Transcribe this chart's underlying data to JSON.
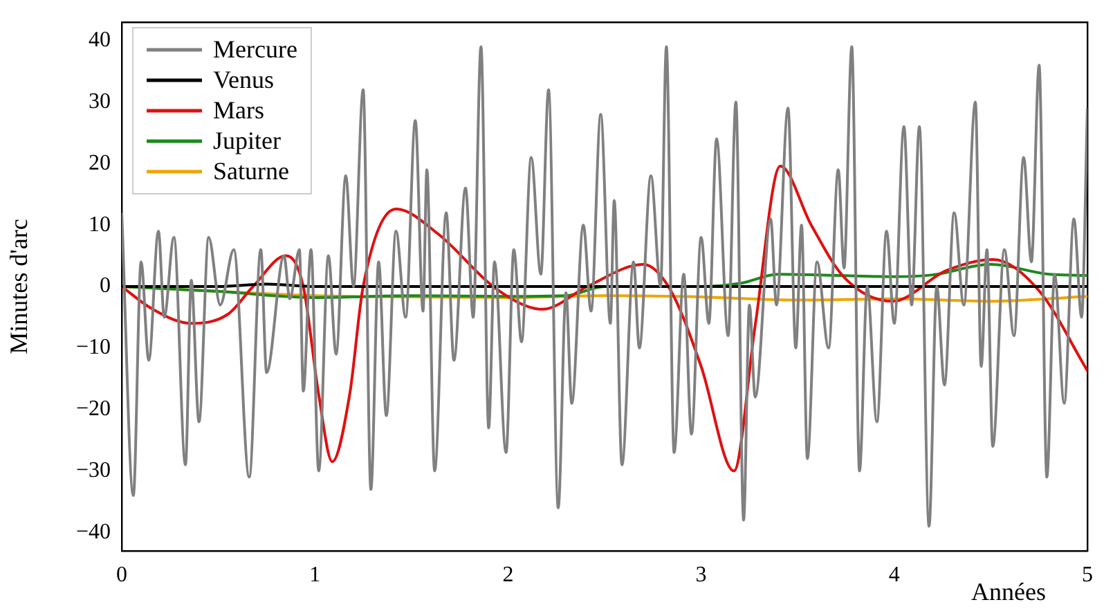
{
  "chart_data": {
    "type": "line",
    "xlabel": "Années",
    "ylabel": "Minutes d'arc",
    "xlim": [
      0,
      5
    ],
    "xticks": [
      0,
      1,
      2,
      3,
      4,
      5
    ],
    "ylim": [
      -43,
      43
    ],
    "yticks": [
      {
        "value": -40,
        "label": "−40"
      },
      {
        "value": -30,
        "label": "−30"
      },
      {
        "value": -20,
        "label": "−20"
      },
      {
        "value": -10,
        "label": "−10"
      },
      0,
      10,
      20,
      30,
      40
    ],
    "legend": "top left",
    "grid": false,
    "marker": "none",
    "line_style": "solid",
    "series": [
      {
        "name": "Mercure",
        "color": "#808080",
        "x": [
          0,
          0.06,
          0.1,
          0.14,
          0.19,
          0.22,
          0.27,
          0.33,
          0.36,
          0.4,
          0.45,
          0.51,
          0.58,
          0.66,
          0.72,
          0.75,
          0.84,
          0.87,
          0.92,
          0.94,
          0.98,
          1.02,
          1.07,
          1.11,
          1.16,
          1.2,
          1.25,
          1.29,
          1.33,
          1.37,
          1.42,
          1.47,
          1.52,
          1.56,
          1.58,
          1.62,
          1.68,
          1.72,
          1.78,
          1.82,
          1.86,
          1.9,
          1.93,
          1.99,
          2.03,
          2.07,
          2.12,
          2.17,
          2.21,
          2.26,
          2.3,
          2.33,
          2.39,
          2.43,
          2.48,
          2.53,
          2.55,
          2.59,
          2.65,
          2.68,
          2.74,
          2.79,
          2.82,
          2.86,
          2.91,
          2.95,
          3.0,
          3.04,
          3.08,
          3.14,
          3.18,
          3.22,
          3.25,
          3.28,
          3.36,
          3.39,
          3.45,
          3.49,
          3.52,
          3.55,
          3.6,
          3.66,
          3.71,
          3.74,
          3.78,
          3.82,
          3.86,
          3.91,
          3.96,
          4.0,
          4.05,
          4.09,
          4.13,
          4.18,
          4.22,
          4.26,
          4.31,
          4.36,
          4.42,
          4.45,
          4.48,
          4.51,
          4.57,
          4.62,
          4.67,
          4.71,
          4.75,
          4.79,
          4.83,
          4.88,
          4.93,
          4.97,
          5.0
        ],
        "values": [
          12,
          -34,
          4,
          -12,
          9,
          -5,
          8,
          -29,
          1,
          -22,
          8,
          -3,
          6,
          -31,
          6,
          -14,
          5,
          -2,
          6,
          -17,
          6,
          -30,
          5,
          -11,
          18,
          0,
          32,
          -33,
          4,
          -21,
          9,
          -5,
          27,
          -4,
          19,
          -30,
          12,
          -12,
          16,
          -5,
          39,
          -23,
          4,
          -27,
          6,
          -9,
          21,
          2,
          32,
          -36,
          -1,
          -19,
          10,
          -4,
          28,
          -6,
          14,
          -29,
          4,
          -10,
          18,
          0,
          39,
          -27,
          2,
          -24,
          8,
          -6,
          24,
          -8,
          30,
          -38,
          -3,
          -18,
          11,
          -3,
          29,
          -10,
          10,
          -28,
          4,
          -10,
          19,
          3,
          39,
          -30,
          0,
          -22,
          9,
          -6,
          26,
          -3,
          26,
          -39,
          0,
          -16,
          12,
          -3,
          30,
          -13,
          6,
          -26,
          6,
          -8,
          21,
          4,
          36,
          -31,
          2,
          -19,
          11,
          -5,
          29
        ]
      },
      {
        "name": "Venus",
        "color": "#000000",
        "x": [
          0,
          0.5,
          0.75,
          1,
          5
        ],
        "values": [
          0,
          0,
          0.4,
          0,
          0
        ]
      },
      {
        "name": "Mars",
        "color": "#e01010",
        "x": [
          0,
          0.15,
          0.36,
          0.55,
          0.68,
          0.85,
          0.94,
          1.02,
          1.09,
          1.18,
          1.25,
          1.42,
          1.64,
          1.94,
          2.18,
          2.41,
          2.7,
          2.84,
          3.0,
          3.17,
          3.28,
          3.41,
          3.57,
          3.74,
          3.99,
          4.27,
          4.51,
          4.75,
          5.0
        ],
        "values": [
          0,
          -3.5,
          -6,
          -4.5,
          0,
          5,
          0,
          -17.6,
          -28.5,
          -17.6,
          0,
          12.6,
          8.5,
          -0.4,
          -3.7,
          0,
          3.6,
          -0.5,
          -13,
          -30,
          -6.3,
          19.6,
          10,
          1.5,
          -2.4,
          2.6,
          4.4,
          -0.7,
          -13.7
        ]
      },
      {
        "name": "Jupiter",
        "color": "#1a8a1a",
        "x": [
          0,
          0.5,
          1.0,
          1.5,
          2.0,
          2.3,
          2.5,
          3.0,
          3.2,
          3.4,
          3.7,
          4.0,
          4.2,
          4.5,
          4.8,
          5.0
        ],
        "values": [
          0,
          -0.8,
          -1.8,
          -1.5,
          -1.6,
          -1.5,
          0,
          0,
          0.5,
          2,
          1.8,
          1.6,
          1.9,
          3.6,
          2,
          1.8
        ]
      },
      {
        "name": "Saturne",
        "color": "#f0a500",
        "x": [
          0,
          0.5,
          1,
          1.5,
          2,
          2.5,
          3,
          3.5,
          4,
          4.5,
          5
        ],
        "values": [
          0,
          -0.8,
          -1.5,
          -1.7,
          -1.8,
          -1.5,
          -1.7,
          -2.2,
          -2,
          -2.4,
          -1.6
        ]
      }
    ]
  }
}
